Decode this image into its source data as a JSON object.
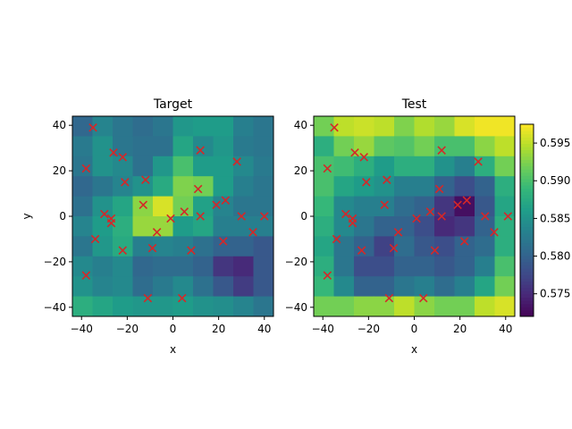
{
  "chart_data": [
    {
      "type": "heatmap",
      "title": "Target",
      "xlabel": "x",
      "ylabel": "y",
      "xlim": [
        -44,
        44
      ],
      "ylim": [
        -44,
        44
      ],
      "xticks": [
        -40,
        -20,
        0,
        20,
        40
      ],
      "yticks": [
        -40,
        -20,
        0,
        20,
        40
      ],
      "grid_extent": [
        -44,
        44,
        -44,
        44
      ],
      "grid_size": [
        10,
        10
      ],
      "cell_values": [
        [
          0.5805,
          0.5835,
          0.582,
          0.581,
          0.582,
          0.5855,
          0.586,
          0.586,
          0.583,
          0.582
        ],
        [
          0.5825,
          0.585,
          0.582,
          0.5815,
          0.5815,
          0.587,
          0.584,
          0.5855,
          0.5825,
          0.582
        ],
        [
          0.582,
          0.585,
          0.584,
          0.5815,
          0.5855,
          0.59,
          0.586,
          0.586,
          0.584,
          0.5825
        ],
        [
          0.5805,
          0.582,
          0.5835,
          0.585,
          0.5875,
          0.5925,
          0.592,
          0.586,
          0.583,
          0.582
        ],
        [
          0.5815,
          0.585,
          0.587,
          0.593,
          0.596,
          0.592,
          0.5865,
          0.5835,
          0.582,
          0.582
        ],
        [
          0.5835,
          0.586,
          0.588,
          0.5935,
          0.5935,
          0.586,
          0.587,
          0.583,
          0.583,
          0.583
        ],
        [
          0.582,
          0.5855,
          0.5875,
          0.583,
          0.5835,
          0.583,
          0.5815,
          0.58,
          0.58,
          0.579
        ],
        [
          0.584,
          0.583,
          0.584,
          0.5805,
          0.581,
          0.581,
          0.58,
          0.576,
          0.575,
          0.579
        ],
        [
          0.585,
          0.5835,
          0.584,
          0.581,
          0.5825,
          0.584,
          0.5815,
          0.579,
          0.5765,
          0.579
        ],
        [
          0.588,
          0.587,
          0.586,
          0.5855,
          0.5855,
          0.586,
          0.585,
          0.5845,
          0.5835,
          0.582
        ]
      ],
      "points": [
        [
          -35,
          39
        ],
        [
          -38,
          21
        ],
        [
          -26,
          28
        ],
        [
          -22,
          26
        ],
        [
          -21,
          15
        ],
        [
          -12,
          16
        ],
        [
          12,
          29
        ],
        [
          28,
          24
        ],
        [
          11,
          12
        ],
        [
          -30,
          1
        ],
        [
          -27,
          -1
        ],
        [
          -27,
          -3
        ],
        [
          -13,
          5
        ],
        [
          -7,
          -7
        ],
        [
          -1,
          -1
        ],
        [
          5,
          2
        ],
        [
          12,
          0
        ],
        [
          23,
          7
        ],
        [
          19,
          5
        ],
        [
          30,
          0
        ],
        [
          40,
          0
        ],
        [
          35,
          -7
        ],
        [
          -34,
          -10
        ],
        [
          -22,
          -15
        ],
        [
          -9,
          -14
        ],
        [
          8,
          -15
        ],
        [
          22,
          -11
        ],
        [
          -38,
          -26
        ],
        [
          -11,
          -36
        ],
        [
          4,
          -36
        ]
      ],
      "marker": "x",
      "marker_color": "#d62728"
    },
    {
      "type": "heatmap",
      "title": "Test",
      "xlabel": "x",
      "xlim": [
        -44,
        44
      ],
      "ylim": [
        -44,
        44
      ],
      "xticks": [
        -40,
        -20,
        0,
        20,
        40
      ],
      "yticks": [
        -40,
        -20,
        0,
        20,
        40
      ],
      "grid_extent": [
        -44,
        44,
        -44,
        44
      ],
      "grid_size": [
        10,
        10
      ],
      "cell_values": [
        [
          0.592,
          0.595,
          0.5955,
          0.595,
          0.5925,
          0.5945,
          0.5935,
          0.596,
          0.597,
          0.597
        ],
        [
          0.588,
          0.592,
          0.5935,
          0.591,
          0.5905,
          0.592,
          0.59,
          0.59,
          0.593,
          0.595
        ],
        [
          0.59,
          0.5895,
          0.588,
          0.586,
          0.588,
          0.588,
          0.585,
          0.583,
          0.588,
          0.592
        ],
        [
          0.59,
          0.587,
          0.586,
          0.585,
          0.583,
          0.583,
          0.58,
          0.578,
          0.58,
          0.588
        ],
        [
          0.589,
          0.584,
          0.583,
          0.583,
          0.581,
          0.58,
          0.576,
          0.573,
          0.579,
          0.587
        ],
        [
          0.588,
          0.584,
          0.582,
          0.58,
          0.58,
          0.578,
          0.575,
          0.576,
          0.58,
          0.588
        ],
        [
          0.587,
          0.582,
          0.58,
          0.577,
          0.581,
          0.579,
          0.578,
          0.58,
          0.581,
          0.588
        ],
        [
          0.588,
          0.582,
          0.578,
          0.578,
          0.58,
          0.58,
          0.579,
          0.58,
          0.583,
          0.59
        ],
        [
          0.589,
          0.584,
          0.58,
          0.58,
          0.582,
          0.583,
          0.581,
          0.583,
          0.587,
          0.592
        ],
        [
          0.592,
          0.592,
          0.593,
          0.593,
          0.595,
          0.593,
          0.592,
          0.592,
          0.595,
          0.596
        ]
      ],
      "points": [
        [
          -35,
          39
        ],
        [
          -38,
          21
        ],
        [
          -26,
          28
        ],
        [
          -22,
          26
        ],
        [
          -21,
          15
        ],
        [
          -12,
          16
        ],
        [
          12,
          29
        ],
        [
          28,
          24
        ],
        [
          11,
          12
        ],
        [
          -30,
          1
        ],
        [
          -27,
          -1
        ],
        [
          -27,
          -3
        ],
        [
          -13,
          5
        ],
        [
          -7,
          -7
        ],
        [
          1,
          -1
        ],
        [
          7,
          2
        ],
        [
          12,
          0
        ],
        [
          23,
          7
        ],
        [
          19,
          5
        ],
        [
          31,
          0
        ],
        [
          41,
          0
        ],
        [
          35,
          -7
        ],
        [
          -34,
          -10
        ],
        [
          -23,
          -15
        ],
        [
          -9,
          -14
        ],
        [
          9,
          -15
        ],
        [
          22,
          -11
        ],
        [
          -38,
          -26
        ],
        [
          -11,
          -36
        ],
        [
          4,
          -36
        ]
      ],
      "marker": "x",
      "marker_color": "#d62728"
    }
  ],
  "colorbar": {
    "colormap": "viridis",
    "min": 0.572,
    "max": 0.5975,
    "ticks": [
      "0.575",
      "0.580",
      "0.585",
      "0.590",
      "0.595"
    ]
  }
}
